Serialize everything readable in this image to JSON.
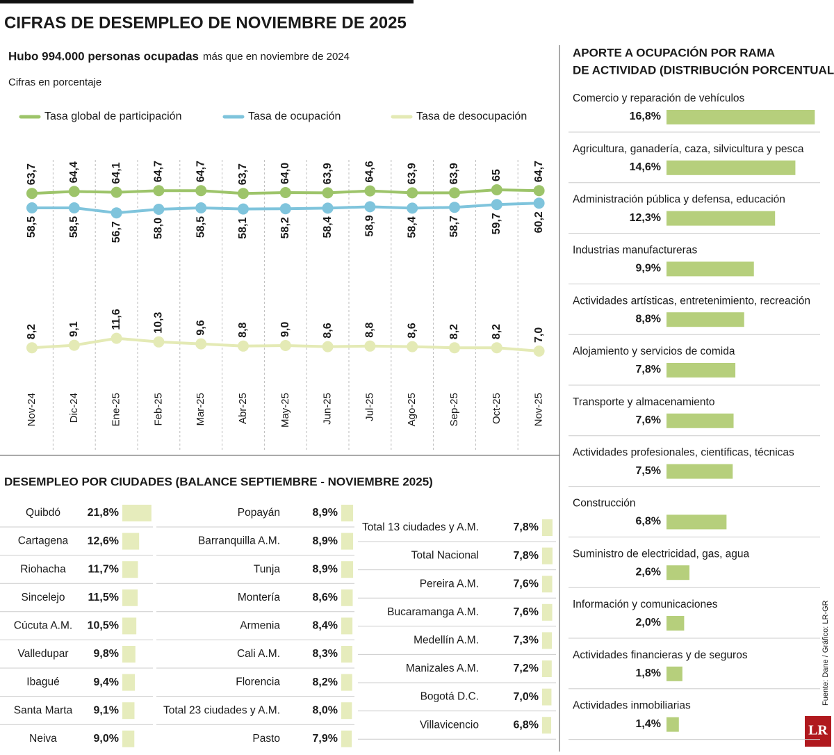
{
  "title": "CIFRAS DE DESEMPLEO DE NOVIEMBRE DE 2025",
  "source": "Fuente: Dane / Gráfico: LR-GR",
  "logo": "LR",
  "chart_data": [
    {
      "type": "line",
      "subtitle_bold": "Hubo 994.000 personas ocupadas",
      "subtitle": "más que en noviembre de 2024",
      "note": "Cifras en porcentaje",
      "categories": [
        "Nov-24",
        "Dic-24",
        "Ene-25",
        "Feb-25",
        "Mar-25",
        "Abr-25",
        "May-25",
        "Jun-25",
        "Jul-25",
        "Ago-25",
        "Sep-25",
        "Oct-25",
        "Nov-25"
      ],
      "series": [
        {
          "name": "Tasa global de participación",
          "color": "#9dc46a",
          "values": [
            63.7,
            64.4,
            64.1,
            64.7,
            64.7,
            63.7,
            64.0,
            63.9,
            64.6,
            63.9,
            63.9,
            65,
            64.7
          ],
          "value_labels": [
            "63,7",
            "64,4",
            "64,1",
            "64,7",
            "64,7",
            "63,7",
            "64,0",
            "63,9",
            "64,6",
            "63,9",
            "63,9",
            "65",
            "64,7"
          ]
        },
        {
          "name": "Tasa de ocupación",
          "color": "#7fc4dc",
          "values": [
            58.5,
            58.5,
            56.7,
            58.0,
            58.5,
            58.1,
            58.2,
            58.4,
            58.9,
            58.4,
            58.7,
            59.7,
            60.2
          ],
          "value_labels": [
            "58,5",
            "58,5",
            "56,7",
            "58,0",
            "58,5",
            "58,1",
            "58,2",
            "58,4",
            "58,9",
            "58,4",
            "58,7",
            "59,7",
            "60,2"
          ]
        },
        {
          "name": "Tasa de desocupación",
          "color": "#e4eab5",
          "values": [
            8.2,
            9.1,
            11.6,
            10.3,
            9.6,
            8.8,
            9.0,
            8.6,
            8.8,
            8.6,
            8.2,
            8.2,
            7.0
          ],
          "value_labels": [
            "8,2",
            "9,1",
            "11,6",
            "10,3",
            "9,6",
            "8,8",
            "9,0",
            "8,6",
            "8,8",
            "8,6",
            "8,2",
            "8,2",
            "7,0"
          ]
        }
      ]
    },
    {
      "type": "bar",
      "orientation": "horizontal",
      "title": "DESEMPLEO POR CIUDADES (BALANCE SEPTIEMBRE - NOVIEMBRE 2025)",
      "color": "#e6ecbc",
      "categories": [
        "Quibdó",
        "Cartagena",
        "Riohacha",
        "Sincelejo",
        "Cúcuta A.M.",
        "Valledupar",
        "Ibagué",
        "Santa Marta",
        "Neiva",
        "Popayán",
        "Barranquilla A.M.",
        "Tunja",
        "Montería",
        "Armenia",
        "Cali A.M.",
        "Florencia",
        "Total 23 ciudades y A.M.",
        "Pasto",
        "Total 13 ciudades y A.M.",
        "Total Nacional",
        "Pereira A.M.",
        "Bucaramanga A.M.",
        "Medellín A.M.",
        "Manizales A.M.",
        "Bogotá D.C.",
        "Villavicencio"
      ],
      "values": [
        21.8,
        12.6,
        11.7,
        11.5,
        10.5,
        9.8,
        9.4,
        9.1,
        9.0,
        8.9,
        8.9,
        8.9,
        8.6,
        8.4,
        8.3,
        8.2,
        8.0,
        7.9,
        7.8,
        7.8,
        7.6,
        7.6,
        7.3,
        7.2,
        7.0,
        6.8
      ],
      "value_labels": [
        "21,8%",
        "12,6%",
        "11,7%",
        "11,5%",
        "10,5%",
        "9,8%",
        "9,4%",
        "9,1%",
        "9,0%",
        "8,9%",
        "8,9%",
        "8,9%",
        "8,6%",
        "8,4%",
        "8,3%",
        "8,2%",
        "8,0%",
        "7,9%",
        "7,8%",
        "7,8%",
        "7,6%",
        "7,6%",
        "7,3%",
        "7,2%",
        "7,0%",
        "6,8%"
      ]
    },
    {
      "type": "bar",
      "orientation": "horizontal",
      "title": [
        "APORTE A OCUPACIÓN POR RAMA",
        "DE ACTIVIDAD (DISTRIBUCIÓN PORCENTUAL)"
      ],
      "color": "#b6cf7c",
      "categories": [
        "Comercio y reparación de vehículos",
        "Agricultura, ganadería, caza, silvicultura y pesca",
        "Administración pública y defensa, educación",
        "Industrias manufactureras",
        "Actividades artísticas, entretenimiento, recreación",
        "Alojamiento y servicios de comida",
        "Transporte y almacenamiento",
        "Actividades profesionales, científicas, técnicas",
        "Construcción",
        "Suministro de electricidad, gas, agua",
        "Información y comunicaciones",
        "Actividades financieras y de seguros",
        "Actividades inmobiliarias"
      ],
      "values": [
        16.8,
        14.6,
        12.3,
        9.9,
        8.8,
        7.8,
        7.6,
        7.5,
        6.8,
        2.6,
        2.0,
        1.8,
        1.4
      ],
      "value_labels": [
        "16,8%",
        "14,6%",
        "12,3%",
        "9,9%",
        "8,8%",
        "7,8%",
        "7,6%",
        "7,5%",
        "6,8%",
        "2,6%",
        "2,0%",
        "1,8%",
        "1,4%"
      ]
    }
  ]
}
